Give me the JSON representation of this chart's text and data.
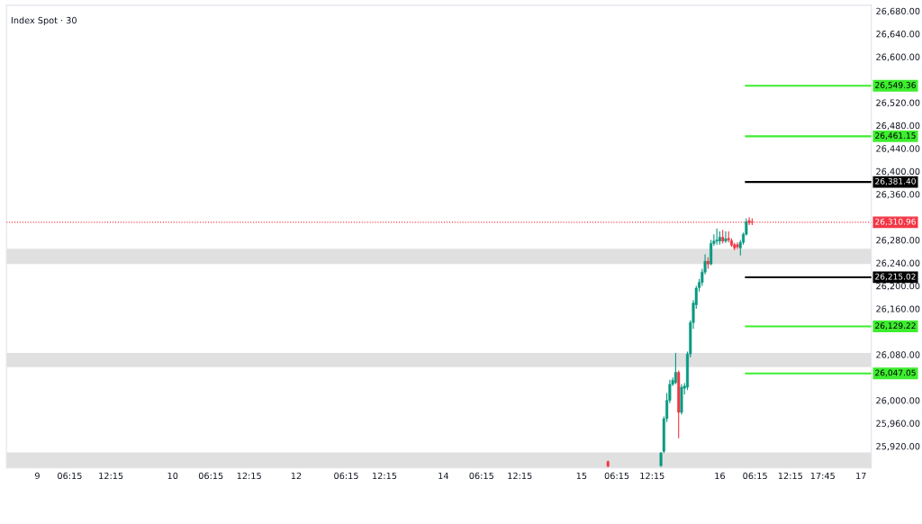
{
  "chart_data": {
    "type": "candlestick",
    "title": "Index Spot · 30",
    "categories": [
      null,
      null,
      null,
      null,
      null,
      null,
      null,
      null,
      null,
      null,
      "9",
      null,
      null,
      null,
      null,
      null,
      null,
      null,
      null,
      null,
      null,
      "06:15",
      null,
      null,
      null,
      null,
      null,
      null,
      null,
      null,
      null,
      null,
      null,
      null,
      null,
      "12:15",
      null,
      null,
      null,
      null,
      null,
      null,
      null,
      null,
      null,
      null,
      null,
      null,
      null,
      null,
      null,
      null,
      null,
      null,
      null,
      null,
      "10",
      null,
      null,
      null,
      null,
      null,
      null,
      null,
      null,
      null,
      null,
      null,
      null,
      "06:15",
      null,
      null,
      null,
      null,
      null,
      null,
      null,
      null,
      null,
      null,
      null,
      null,
      "12:15",
      null,
      null,
      null,
      null,
      null,
      null,
      null,
      null,
      null,
      null,
      null,
      null,
      null,
      null,
      null,
      "12",
      null,
      null,
      null,
      null,
      null,
      null,
      null,
      null,
      null,
      null,
      null,
      null,
      null,
      null,
      null,
      null,
      "06:15",
      null,
      null,
      null,
      null,
      null,
      null,
      null,
      null,
      null,
      null,
      null,
      null,
      "12:15",
      null,
      null,
      null,
      null,
      null,
      null,
      null,
      null,
      null,
      null,
      null,
      null,
      null,
      null,
      null,
      null,
      null,
      null,
      null,
      "14",
      null,
      null,
      null,
      null,
      null,
      null,
      null,
      null,
      null,
      null,
      null,
      null,
      "06:15",
      null,
      null,
      null,
      null,
      null,
      null,
      null,
      null,
      null,
      null,
      null,
      null,
      "12:15",
      null,
      null,
      null,
      null,
      null,
      null,
      null,
      null,
      null,
      null,
      null,
      null,
      null,
      null,
      null,
      null,
      null,
      null,
      null,
      null,
      "15",
      null,
      null,
      null,
      null,
      null,
      null,
      null,
      null,
      null,
      null,
      null,
      "06:15",
      null,
      null,
      null,
      null,
      null,
      null,
      null,
      null,
      null,
      null,
      null,
      "12:15",
      null,
      null,
      null,
      null,
      null,
      null,
      null,
      null,
      null,
      null,
      null,
      null,
      null,
      null,
      null,
      null,
      null,
      null,
      null,
      null,
      null,
      null,
      "16",
      null,
      null,
      null,
      null,
      null,
      null,
      null,
      null,
      null,
      null,
      null,
      "06:15",
      null,
      null,
      null,
      null,
      null,
      null,
      null,
      null,
      null,
      null,
      null,
      "12:15",
      null,
      null,
      null,
      null,
      null,
      null,
      null,
      null,
      null,
      null,
      "17:45",
      null,
      null,
      null,
      null,
      null,
      null,
      null,
      null,
      null,
      null,
      null,
      null,
      "17",
      null,
      null,
      null
    ],
    "ohlc": [
      null,
      null,
      null,
      null,
      null,
      null,
      null,
      null,
      null,
      null,
      null,
      null,
      null,
      null,
      null,
      null,
      null,
      null,
      null,
      null,
      null,
      null,
      null,
      null,
      null,
      null,
      null,
      null,
      null,
      null,
      null,
      null,
      null,
      null,
      null,
      null,
      null,
      null,
      null,
      null,
      null,
      null,
      null,
      null,
      null,
      null,
      null,
      null,
      null,
      null,
      null,
      null,
      null,
      null,
      null,
      null,
      null,
      null,
      null,
      null,
      null,
      null,
      null,
      null,
      null,
      null,
      null,
      null,
      null,
      null,
      null,
      null,
      null,
      null,
      null,
      null,
      null,
      null,
      null,
      null,
      null,
      null,
      null,
      null,
      null,
      null,
      null,
      null,
      null,
      null,
      null,
      null,
      null,
      null,
      null,
      null,
      null,
      null,
      null,
      null,
      null,
      null,
      null,
      null,
      null,
      null,
      null,
      null,
      null,
      null,
      null,
      null,
      null,
      null,
      null,
      null,
      null,
      null,
      null,
      null,
      null,
      null,
      null,
      null,
      null,
      null,
      null,
      null,
      null,
      null,
      null,
      null,
      null,
      null,
      null,
      null,
      null,
      null,
      null,
      null,
      null,
      null,
      null,
      null,
      null,
      null,
      null,
      null,
      null,
      null,
      null,
      null,
      null,
      null,
      null,
      null,
      null,
      null,
      null,
      null,
      null,
      null,
      null,
      null,
      null,
      null,
      null,
      null,
      null,
      null,
      null,
      null,
      null,
      null,
      null,
      null,
      null,
      null,
      null,
      null,
      null,
      null,
      null,
      null,
      null,
      null,
      null,
      null,
      null,
      null,
      null,
      null,
      null,
      null,
      null,
      null,
      null,
      null,
      null,
      null,
      null,
      null,
      null,
      null,
      [
        25893,
        25895,
        25883,
        25885
      ],
      null,
      null,
      null,
      null,
      null,
      null,
      null,
      null,
      null,
      null,
      null,
      null,
      null,
      null,
      null,
      null,
      null,
      [
        25886,
        25910,
        25884,
        25908
      ],
      [
        25911,
        25972,
        25908,
        25968
      ],
      [
        25968,
        26013,
        25962,
        26000
      ],
      [
        26000,
        26036,
        25995,
        26028
      ],
      [
        26028,
        26040,
        26025,
        26035
      ],
      [
        26031,
        26083,
        26028,
        26049
      ],
      [
        26049,
        26052,
        25934,
        25979
      ],
      [
        25979,
        26028,
        25975,
        26023
      ],
      [
        26021,
        26030,
        26010,
        26025
      ],
      [
        26023,
        26085,
        26018,
        26081
      ],
      [
        26081,
        26140,
        26075,
        26136
      ],
      [
        26136,
        26175,
        26125,
        26170
      ],
      [
        26167,
        26200,
        26160,
        26196
      ],
      [
        26197,
        26212,
        26190,
        26206
      ],
      [
        26206,
        26230,
        26200,
        26224
      ],
      [
        26224,
        26255,
        26220,
        26243
      ],
      [
        26243,
        26250,
        26230,
        26238
      ],
      [
        26238,
        26280,
        26236,
        26274
      ],
      [
        26274,
        26290,
        26270,
        26278
      ],
      [
        26278,
        26300,
        26272,
        26280
      ],
      [
        26278,
        26295,
        26272,
        26285
      ],
      [
        26285,
        26298,
        26274,
        26278
      ],
      [
        26278,
        26295,
        26275,
        26282
      ],
      [
        26283,
        26295,
        26276,
        26280
      ],
      [
        26279,
        26283,
        26268,
        26271
      ],
      [
        26272,
        26275,
        26262,
        26266
      ],
      [
        26272,
        26276,
        26264,
        26268
      ],
      [
        26266,
        26280,
        26253,
        26276
      ],
      [
        26276,
        26293,
        26272,
        26290
      ],
      [
        26290,
        26318,
        26288,
        26312
      ],
      [
        26314,
        26320,
        26306,
        26310
      ],
      [
        26312,
        26318,
        26306,
        26311
      ],
      null,
      null,
      null,
      null,
      null,
      null,
      null,
      null,
      null,
      null,
      null,
      null,
      null,
      null,
      null,
      null,
      null,
      null,
      null,
      null,
      null,
      null,
      null,
      null,
      null,
      null,
      null,
      null,
      null,
      null,
      null,
      null,
      null,
      null,
      null,
      null,
      null,
      null,
      null,
      null
    ],
    "colors": [
      null,
      null,
      null,
      null,
      null,
      null,
      null,
      null,
      null,
      null,
      null,
      null,
      null,
      null,
      null,
      null,
      null,
      null,
      null,
      null,
      null,
      null,
      null,
      null,
      null,
      null,
      null,
      null,
      null,
      null,
      null,
      null,
      null,
      null,
      null,
      null,
      null,
      null,
      null,
      null,
      null,
      null,
      null,
      null,
      null,
      null,
      null,
      null,
      null,
      null,
      null,
      null,
      null,
      null,
      null,
      null,
      null,
      null,
      null,
      null,
      null,
      null,
      null,
      null,
      null,
      null,
      null,
      null,
      null,
      null,
      null,
      null,
      null,
      null,
      null,
      null,
      null,
      null,
      null,
      null,
      null,
      null,
      null,
      null,
      null,
      null,
      null,
      null,
      null,
      null,
      null,
      null,
      null,
      null,
      null,
      null,
      null,
      null,
      null,
      null,
      null,
      null,
      null,
      null,
      null,
      null,
      null,
      null,
      null,
      null,
      null,
      null,
      null,
      null,
      null,
      null,
      null,
      null,
      null,
      null,
      null,
      null,
      null,
      null,
      null,
      null,
      null,
      null,
      null,
      null,
      null,
      null,
      null,
      null,
      null,
      null,
      null,
      null,
      null,
      null,
      null,
      null,
      null,
      null,
      null,
      null,
      null,
      null,
      null,
      null,
      null,
      null,
      null,
      null,
      null,
      null,
      null,
      null,
      null,
      null,
      null,
      null,
      null,
      null,
      null,
      null,
      null,
      null,
      null,
      null,
      null,
      null,
      null,
      null,
      null,
      null,
      null,
      null,
      null,
      null,
      null,
      null,
      null,
      null,
      null,
      null,
      null,
      null,
      null,
      null,
      null,
      null,
      null,
      null,
      null,
      null,
      null,
      null,
      null,
      null,
      null,
      null,
      null,
      null,
      "#f23645",
      null,
      null,
      null,
      null,
      null,
      null,
      null,
      null,
      null,
      null,
      null,
      null,
      null,
      null,
      null,
      null,
      null,
      "#089981",
      "#089981",
      "#089981",
      "#089981",
      "#089981",
      "#089981",
      "#f23645",
      "#089981",
      "#089981",
      "#089981",
      "#089981",
      "#089981",
      "#089981",
      "#089981",
      "#089981",
      "#089981",
      "#f23645",
      "#089981",
      "#089981",
      "#089981",
      "#089981",
      "#f23645",
      "#089981",
      "#f23645",
      "#f23645",
      "#f23645",
      "#f23645",
      "#089981",
      "#089981",
      "#089981",
      "#f23645",
      "#f23645",
      null,
      null,
      null,
      null,
      null,
      null,
      null,
      null,
      null,
      null,
      null,
      null,
      null,
      null,
      null,
      null,
      null,
      null,
      null,
      null,
      null,
      null,
      null,
      null,
      null,
      null,
      null,
      null,
      null,
      null,
      null,
      null,
      null,
      null,
      null,
      null,
      null,
      null,
      null,
      null
    ],
    "ylim": [
      25882,
      26690
    ],
    "yticks": [
      {
        "value": 25920,
        "label": "25,920.00"
      },
      {
        "value": 25960,
        "label": "25,960.00"
      },
      {
        "value": 26000,
        "label": "26,000.00"
      },
      {
        "value": 26080,
        "label": "26,080.00"
      },
      {
        "value": 26160,
        "label": "26,160.00"
      },
      {
        "value": 26200,
        "label": "26,200.00"
      },
      {
        "value": 26240,
        "label": "26,240.00"
      },
      {
        "value": 26280,
        "label": "26,280.00"
      },
      {
        "value": 26360,
        "label": "26,360.00"
      },
      {
        "value": 26400,
        "label": "26,400.00"
      },
      {
        "value": 26440,
        "label": "26,440.00"
      },
      {
        "value": 26480,
        "label": "26,480.00"
      },
      {
        "value": 26520,
        "label": "26,520.00"
      },
      {
        "value": 26600,
        "label": "26,600.00"
      },
      {
        "value": 26640,
        "label": "26,640.00"
      },
      {
        "value": 26680,
        "label": "26,680.00"
      }
    ],
    "ref_lines": [
      {
        "axis": "y",
        "value": 26549.36,
        "label": "26,549.36",
        "color": "#3ded2f"
      },
      {
        "axis": "y",
        "value": 26461.15,
        "label": "26,461.15",
        "color": "#3ded2f"
      },
      {
        "axis": "y",
        "value": 26381.4,
        "label": "26,381.40",
        "color": "#000000"
      },
      {
        "axis": "y",
        "value": 26310.96,
        "label": "26,310.96",
        "color": "#f23645",
        "line_style": "dotted"
      },
      {
        "axis": "y",
        "value": 26215.02,
        "label": "26,215.02",
        "color": "#000000"
      },
      {
        "axis": "y",
        "value": 26129.22,
        "label": "26,129.22",
        "color": "#3ded2f"
      },
      {
        "axis": "y",
        "value": 26047.05,
        "label": "26,047.05",
        "color": "#3ded2f"
      }
    ],
    "bands": [
      {
        "axis": "y",
        "from": 26238,
        "to": 26265,
        "color": "#e0e0e0"
      },
      {
        "axis": "y",
        "from": 26058,
        "to": 26083,
        "color": "#e0e0e0"
      },
      {
        "axis": "y",
        "from": 25882,
        "to": 25909,
        "color": "#e0e0e0"
      }
    ]
  }
}
